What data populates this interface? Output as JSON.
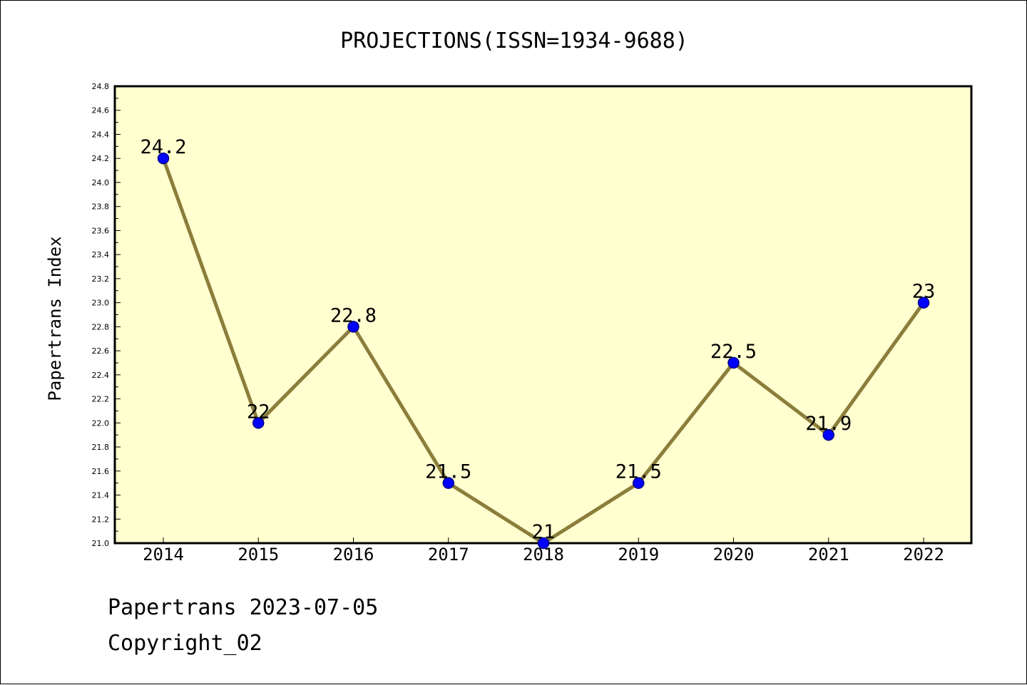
{
  "chart_data": {
    "type": "line",
    "title": "PROJECTIONS(ISSN=1934-9688)",
    "ylabel": "Papertrans Index",
    "xlabel": "",
    "x": [
      "2014",
      "2015",
      "2016",
      "2017",
      "2018",
      "2019",
      "2020",
      "2021",
      "2022"
    ],
    "series": [
      {
        "values": [
          24.2,
          22,
          22.8,
          21.5,
          21,
          21.5,
          22.5,
          21.9,
          23
        ],
        "data_labels": [
          "24.2",
          "22",
          "22.8",
          "21.5",
          "21",
          "21.5",
          "22.5",
          "21.9",
          "23"
        ]
      }
    ],
    "ylim": [
      21.0,
      24.8
    ],
    "yticks": [
      "21.0",
      "21.2",
      "21.4",
      "21.6",
      "21.8",
      "22.0",
      "22.2",
      "22.4",
      "22.6",
      "22.8",
      "23.0",
      "23.2",
      "23.4",
      "23.6",
      "23.8",
      "24.0",
      "24.2",
      "24.4",
      "24.6",
      "24.8"
    ],
    "grid": false,
    "colors": {
      "plot_background": "#ffffd0",
      "line": "#8b7d3a",
      "marker": "#0000ff",
      "marker_edge": "#00008b"
    }
  },
  "footer": {
    "line1": "Papertrans 2023-07-05",
    "line2": "Copyright_02"
  }
}
